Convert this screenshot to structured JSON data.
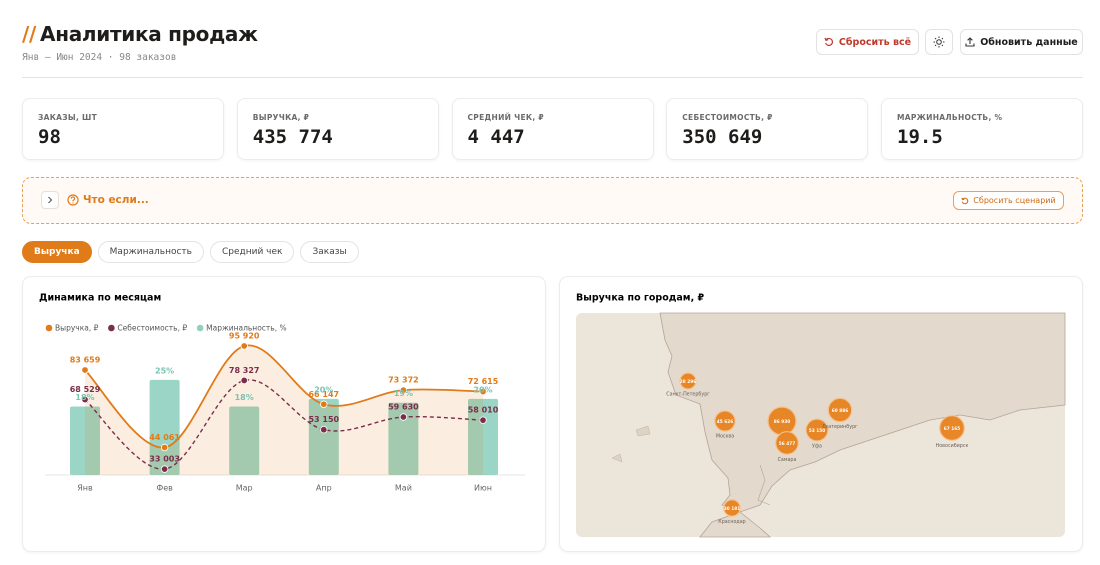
{
  "header": {
    "title_prefix": "//",
    "title": "Аналитика продаж",
    "subtitle": "Янв — Июн 2024 · 98 заказов",
    "reset_all": "Сбросить всё",
    "refresh": "Обновить данные"
  },
  "kpis": [
    {
      "label": "ЗАКАЗЫ, ШТ",
      "value": "98"
    },
    {
      "label": "ВЫРУЧКА, ₽",
      "value": "435 774"
    },
    {
      "label": "СРЕДНИЙ ЧЕК, ₽",
      "value": "4 447"
    },
    {
      "label": "СЕБЕСТОИМОСТЬ, ₽",
      "value": "350 649"
    },
    {
      "label": "МАРЖИНАЛЬНОСТЬ, %",
      "value": "19.5"
    }
  ],
  "scenario": {
    "title": "Что если...",
    "reset": "Сбросить сценарий"
  },
  "tabs": {
    "items": [
      "Выручка",
      "Маржинальность",
      "Средний чек",
      "Заказы"
    ],
    "active": 0
  },
  "chart_data": {
    "type": "combo",
    "title": "Динамика по месяцам",
    "categories": [
      "Янв",
      "Фев",
      "Мар",
      "Апр",
      "Май",
      "Июн"
    ],
    "series": [
      {
        "name": "Выручка, ₽",
        "type": "line",
        "color": "#e07b1a",
        "dashed": false,
        "area": true,
        "values": [
          83659,
          44061,
          95920,
          66147,
          73372,
          72615
        ],
        "value_labels": [
          "83 659",
          "44 061",
          "95 920",
          "66 147",
          "73 372",
          "72 615"
        ]
      },
      {
        "name": "Себестоимость, ₽",
        "type": "line",
        "color": "#7a2e4a",
        "dashed": true,
        "area": false,
        "values": [
          68529,
          33003,
          78327,
          53150,
          59630,
          58010
        ],
        "value_labels": [
          "68 529",
          "33 003",
          "78 327",
          "53 150",
          "59 630",
          "58 010"
        ]
      },
      {
        "name": "Маржинальность, %",
        "type": "bar",
        "axis": "y2",
        "color": "#8fd0bf",
        "values": [
          18,
          25,
          18,
          20,
          19,
          20
        ],
        "value_labels": [
          "18%",
          "25%",
          "18%",
          "20%",
          "19%",
          "20%"
        ]
      }
    ],
    "ylim": [
      30000,
      100000
    ],
    "y2lim": [
      0,
      36
    ],
    "grid": false,
    "legend": "top-left"
  },
  "map": {
    "title": "Выручка по городам, ₽",
    "color": "#e8821e",
    "cities": [
      {
        "name": "Санкт-Петербург",
        "value": 28296,
        "value_label": "28 296"
      },
      {
        "name": "Москва",
        "value": 45626,
        "value_label": "45 626"
      },
      {
        "name": null,
        "value": 86930,
        "value_label": "86 930"
      },
      {
        "name": "Самара",
        "value": 56477,
        "value_label": "56 477"
      },
      {
        "name": "Уфа",
        "value": 53150,
        "value_label": "53 150"
      },
      {
        "name": "Екатеринбург",
        "value": 60886,
        "value_label": "60 886"
      },
      {
        "name": "Новосибирск",
        "value": 67165,
        "value_label": "67 165"
      },
      {
        "name": "Краснодар",
        "value": 30181,
        "value_label": "30 181"
      }
    ]
  }
}
